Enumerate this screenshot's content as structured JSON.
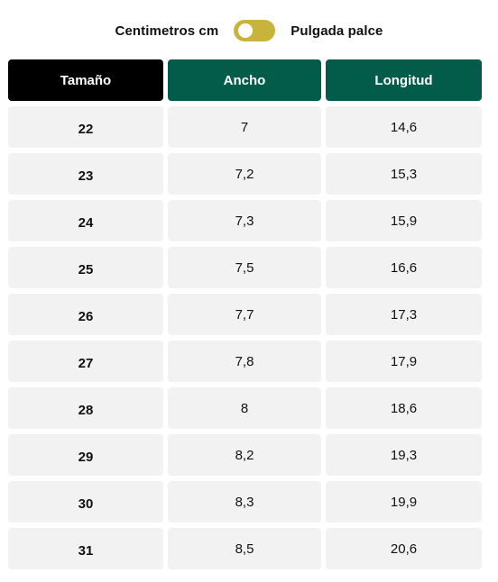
{
  "unit_toggle": {
    "left_label": "Centimetros cm",
    "right_label": "Pulgada palce",
    "state": "off"
  },
  "table": {
    "headers": [
      "Tamaño",
      "Ancho",
      "Longitud"
    ],
    "rows": [
      [
        "22",
        "7",
        "14,6"
      ],
      [
        "23",
        "7,2",
        "15,3"
      ],
      [
        "24",
        "7,3",
        "15,9"
      ],
      [
        "25",
        "7,5",
        "16,6"
      ],
      [
        "26",
        "7,7",
        "17,3"
      ],
      [
        "27",
        "7,8",
        "17,9"
      ],
      [
        "28",
        "8",
        "18,6"
      ],
      [
        "29",
        "8,2",
        "19,3"
      ],
      [
        "30",
        "8,3",
        "19,9"
      ],
      [
        "31",
        "8,5",
        "20,6"
      ]
    ]
  },
  "colors": {
    "toggle_track": "#c8b43b",
    "header_size": "#000000",
    "header_measure": "#035c4a",
    "cell_background": "#f2f2f2"
  }
}
